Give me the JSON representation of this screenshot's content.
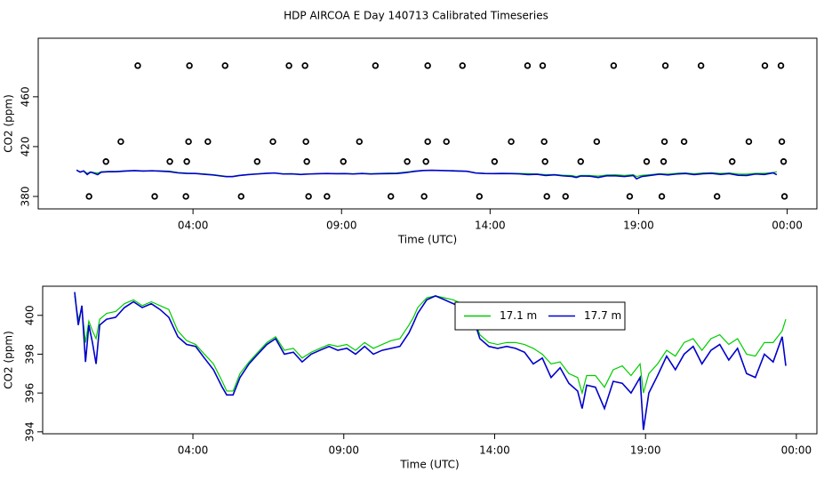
{
  "chart_data": [
    {
      "type": "scatter",
      "title": "HDP AIRCOA E  Day 140713  Calibrated Timeseries",
      "xlabel": "Time (UTC)",
      "ylabel": "CO2 (ppm)",
      "xlim": [
        -1.21,
        25.0
      ],
      "ylim": [
        370,
        507
      ],
      "xticks": [
        {
          "value": 4,
          "label": "04:00"
        },
        {
          "value": 9,
          "label": "09:00"
        },
        {
          "value": 14,
          "label": "14:00"
        },
        {
          "value": 19,
          "label": "19:00"
        },
        {
          "value": 24,
          "label": "00:00"
        }
      ],
      "yticks": [
        380,
        420,
        460
      ],
      "series": [
        {
          "color": "#000000",
          "x": [
            2.14,
            3.88,
            5.08,
            7.23,
            7.77,
            10.14,
            11.9,
            13.07,
            15.26,
            15.77,
            18.16,
            19.9,
            21.1,
            23.25,
            23.79,
            1.57,
            3.85,
            4.5,
            6.69,
            7.8,
            9.6,
            11.9,
            12.53,
            14.71,
            15.82,
            17.59,
            19.87,
            20.53,
            22.71,
            23.82,
            1.07,
            3.22,
            3.79,
            6.16,
            7.83,
            9.06,
            11.21,
            11.84,
            14.15,
            15.85,
            17.05,
            19.27,
            19.84,
            22.15,
            23.88,
            0.5,
            2.71,
            3.76,
            5.62,
            7.89,
            8.51,
            10.66,
            11.78,
            13.64,
            15.91,
            16.54,
            18.7,
            19.78,
            21.64,
            23.91
          ],
          "values": [
            485,
            485,
            485,
            485,
            485,
            485,
            485,
            485,
            485,
            485,
            485,
            485,
            485,
            485,
            485,
            424,
            424,
            424,
            424,
            424,
            424,
            424,
            424,
            424,
            424,
            424,
            424,
            424,
            424,
            424,
            408,
            408,
            408,
            408,
            408,
            408,
            408,
            408,
            408,
            408,
            408,
            408,
            408,
            408,
            408,
            380,
            380,
            380,
            380,
            380,
            380,
            380,
            380,
            380,
            380,
            380,
            380,
            380,
            380,
            380
          ]
        }
      ]
    },
    {
      "type": "line",
      "xlabel": "Time (UTC)",
      "ylabel": "CO2 (ppm)",
      "xlim": [
        -0.98,
        24.68
      ],
      "ylim": [
        393.9,
        401.5
      ],
      "xticks": [
        {
          "value": 4,
          "label": "04:00"
        },
        {
          "value": 9,
          "label": "09:00"
        },
        {
          "value": 14,
          "label": "14:00"
        },
        {
          "value": 19,
          "label": "19:00"
        },
        {
          "value": 24,
          "label": "00:00"
        }
      ],
      "yticks": [
        394,
        396,
        398,
        400
      ],
      "legend": "top-right",
      "x": [
        0.08,
        0.2,
        0.32,
        0.44,
        0.55,
        0.67,
        0.79,
        0.91,
        1.14,
        1.44,
        1.73,
        2.03,
        2.32,
        2.62,
        2.91,
        3.2,
        3.5,
        3.79,
        4.09,
        4.38,
        4.68,
        4.97,
        5.12,
        5.33,
        5.56,
        5.86,
        6.15,
        6.45,
        6.74,
        7.03,
        7.33,
        7.62,
        7.92,
        8.21,
        8.51,
        8.8,
        9.1,
        9.39,
        9.69,
        9.98,
        10.27,
        10.57,
        10.86,
        11.16,
        11.31,
        11.45,
        11.75,
        12.04,
        12.34,
        12.63,
        12.92,
        13.22,
        13.51,
        13.81,
        14.1,
        14.4,
        14.69,
        14.99,
        15.28,
        15.58,
        15.87,
        16.17,
        16.46,
        16.75,
        16.9,
        17.05,
        17.34,
        17.64,
        17.93,
        18.23,
        18.52,
        18.82,
        18.93,
        19.11,
        19.4,
        19.7,
        19.99,
        20.28,
        20.58,
        20.87,
        21.17,
        21.46,
        21.76,
        22.05,
        22.35,
        22.64,
        22.94,
        23.23,
        23.53,
        23.65
      ],
      "series": [
        {
          "name": "17.1 m",
          "color": "#00cc00",
          "values": [
            401.0,
            399.8,
            400.3,
            398.6,
            399.7,
            399.2,
            398.8,
            399.8,
            400.1,
            400.2,
            400.6,
            400.8,
            400.5,
            400.7,
            400.5,
            400.3,
            399.2,
            398.7,
            398.5,
            398.0,
            397.5,
            396.6,
            396.1,
            396.1,
            397.0,
            397.6,
            398.1,
            398.6,
            398.9,
            398.2,
            398.3,
            397.8,
            398.1,
            398.3,
            398.5,
            398.4,
            398.5,
            398.2,
            398.6,
            398.3,
            398.5,
            398.7,
            398.8,
            399.5,
            399.9,
            400.4,
            400.9,
            401.0,
            400.9,
            400.8,
            400.6,
            400.3,
            399.0,
            398.6,
            398.5,
            398.6,
            398.6,
            398.5,
            398.3,
            398.0,
            397.5,
            397.6,
            397.0,
            396.8,
            396.0,
            396.9,
            396.9,
            396.3,
            397.2,
            397.4,
            396.9,
            397.5,
            396.0,
            397.0,
            397.5,
            398.2,
            397.9,
            398.6,
            398.8,
            398.2,
            398.8,
            399.0,
            398.5,
            398.8,
            398.0,
            397.9,
            398.6,
            398.6,
            399.2,
            399.8
          ]
        },
        {
          "name": "17.7 m",
          "color": "#0000cc",
          "values": [
            401.2,
            399.5,
            400.5,
            397.6,
            399.5,
            398.6,
            397.5,
            399.5,
            399.8,
            399.9,
            400.4,
            400.7,
            400.4,
            400.6,
            400.3,
            399.9,
            398.9,
            398.5,
            398.4,
            397.8,
            397.2,
            396.3,
            395.9,
            395.9,
            396.8,
            397.5,
            398.0,
            398.5,
            398.8,
            398.0,
            398.1,
            397.6,
            398.0,
            398.2,
            398.4,
            398.2,
            398.3,
            398.0,
            398.4,
            398.0,
            398.2,
            398.3,
            398.4,
            399.1,
            399.6,
            400.1,
            400.8,
            401.0,
            400.8,
            400.6,
            400.4,
            400.2,
            398.8,
            398.4,
            398.3,
            398.4,
            398.3,
            398.1,
            397.5,
            397.8,
            396.8,
            397.3,
            396.5,
            396.1,
            395.2,
            396.4,
            396.3,
            395.2,
            396.6,
            396.5,
            396.0,
            396.8,
            394.1,
            396.0,
            396.9,
            397.9,
            397.2,
            398.0,
            398.4,
            397.5,
            398.2,
            398.5,
            397.7,
            398.3,
            397.0,
            396.8,
            398.0,
            397.6,
            398.9,
            397.4
          ]
        }
      ]
    }
  ]
}
